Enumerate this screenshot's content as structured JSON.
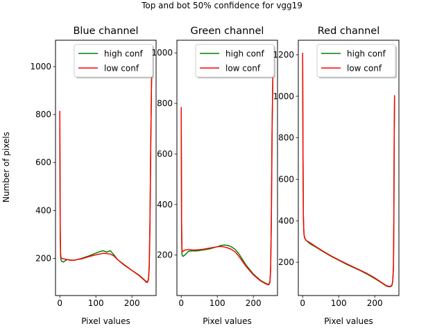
{
  "figure": {
    "suptitle": "Top and bot 50% confidence for vgg19",
    "ylabel": "Number of pixels"
  },
  "chart_data": [
    {
      "type": "line",
      "title": "Blue channel",
      "xlabel": "Pixel values",
      "ylabel": "Number of pixels",
      "xlim": [
        -12,
        267
      ],
      "ylim": [
        45,
        1110
      ],
      "xticks": [
        0,
        100,
        200
      ],
      "yticks": [
        200,
        400,
        600,
        800,
        1000
      ],
      "legend": "top-right",
      "series": [
        {
          "name": "high conf",
          "color": "#008000",
          "x": [
            0,
            1,
            2,
            3,
            5,
            10,
            20,
            30,
            40,
            60,
            80,
            100,
            110,
            120,
            130,
            140,
            150,
            160,
            180,
            200,
            220,
            235,
            240,
            243,
            246,
            248,
            250,
            252,
            254,
            255
          ],
          "y": [
            750,
            300,
            210,
            195,
            188,
            185,
            195,
            193,
            192,
            200,
            210,
            222,
            228,
            232,
            226,
            232,
            215,
            195,
            170,
            150,
            130,
            110,
            103,
            102,
            115,
            170,
            350,
            650,
            900,
            980
          ]
        },
        {
          "name": "low conf",
          "color": "#ff0000",
          "x": [
            0,
            1,
            2,
            3,
            5,
            10,
            20,
            30,
            40,
            60,
            80,
            100,
            110,
            120,
            130,
            140,
            150,
            160,
            180,
            200,
            220,
            235,
            240,
            243,
            246,
            248,
            250,
            252,
            254,
            255
          ],
          "y": [
            815,
            350,
            225,
            205,
            200,
            198,
            195,
            192,
            193,
            198,
            207,
            215,
            218,
            221,
            220,
            218,
            210,
            195,
            172,
            150,
            128,
            108,
            100,
            100,
            112,
            165,
            340,
            640,
            900,
            980
          ]
        }
      ]
    },
    {
      "type": "line",
      "title": "Green channel",
      "xlabel": "Pixel values",
      "ylabel": "",
      "xlim": [
        -12,
        267
      ],
      "ylim": [
        40,
        1050
      ],
      "xticks": [
        0,
        100,
        200
      ],
      "yticks": [
        200,
        400,
        600,
        800,
        1000
      ],
      "legend": "top-right",
      "series": [
        {
          "name": "high conf",
          "color": "#008000",
          "x": [
            0,
            1,
            2,
            3,
            5,
            10,
            20,
            30,
            40,
            60,
            80,
            100,
            110,
            120,
            130,
            140,
            150,
            160,
            180,
            200,
            220,
            235,
            240,
            243,
            246,
            248,
            250,
            252,
            254,
            255
          ],
          "y": [
            700,
            280,
            205,
            198,
            195,
            200,
            215,
            217,
            216,
            220,
            225,
            233,
            238,
            240,
            238,
            232,
            222,
            205,
            160,
            125,
            100,
            88,
            85,
            85,
            95,
            150,
            350,
            700,
            900,
            960
          ]
        },
        {
          "name": "low conf",
          "color": "#ff0000",
          "x": [
            0,
            1,
            2,
            3,
            5,
            10,
            20,
            30,
            40,
            60,
            80,
            100,
            110,
            120,
            130,
            140,
            150,
            160,
            180,
            200,
            220,
            235,
            240,
            243,
            246,
            248,
            250,
            252,
            254,
            255
          ],
          "y": [
            785,
            330,
            225,
            215,
            215,
            220,
            222,
            220,
            220,
            223,
            228,
            233,
            234,
            232,
            228,
            222,
            212,
            195,
            155,
            122,
            98,
            86,
            83,
            83,
            92,
            145,
            340,
            690,
            900,
            960
          ]
        }
      ]
    },
    {
      "type": "line",
      "title": "Red channel",
      "xlabel": "Pixel values",
      "ylabel": "",
      "xlim": [
        -12,
        267
      ],
      "ylim": [
        40,
        1270
      ],
      "xticks": [
        0,
        100,
        200
      ],
      "yticks": [
        200,
        400,
        600,
        800,
        1000,
        1200
      ],
      "legend": "top-right",
      "series": [
        {
          "name": "high conf",
          "color": "#008000",
          "x": [
            0,
            1,
            2,
            3,
            4,
            6,
            10,
            20,
            40,
            60,
            80,
            100,
            120,
            140,
            160,
            180,
            200,
            220,
            230,
            235,
            240,
            245,
            248,
            250,
            252,
            253,
            254,
            255
          ],
          "y": [
            1200,
            700,
            420,
            360,
            330,
            315,
            305,
            290,
            270,
            248,
            228,
            210,
            192,
            176,
            160,
            142,
            122,
            100,
            88,
            84,
            82,
            84,
            90,
            110,
            180,
            400,
            800,
            1000
          ]
        },
        {
          "name": "low conf",
          "color": "#ff0000",
          "x": [
            0,
            1,
            2,
            3,
            4,
            6,
            10,
            20,
            40,
            60,
            80,
            100,
            120,
            140,
            160,
            180,
            200,
            220,
            230,
            235,
            240,
            245,
            248,
            250,
            252,
            253,
            254,
            255
          ],
          "y": [
            1210,
            720,
            430,
            365,
            332,
            316,
            305,
            295,
            272,
            250,
            230,
            212,
            195,
            178,
            162,
            145,
            125,
            102,
            90,
            86,
            84,
            86,
            92,
            112,
            185,
            420,
            820,
            1005
          ]
        }
      ]
    }
  ]
}
